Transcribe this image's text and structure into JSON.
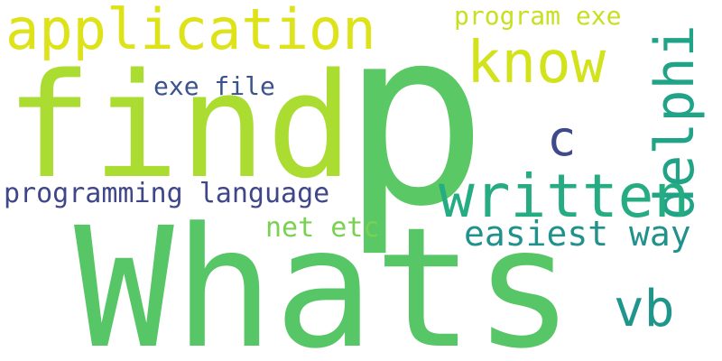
{
  "words": {
    "whats": {
      "text": "Whats",
      "color": "#57c666"
    },
    "p": {
      "text": "p",
      "color": "#5ac864"
    },
    "find": {
      "text": "find",
      "color": "#aadc32"
    },
    "application": {
      "text": "application",
      "color": "#dde318"
    },
    "know": {
      "text": "know",
      "color": "#d2e21b"
    },
    "program_exe": {
      "text": "program exe",
      "color": "#c8e020"
    },
    "delphi": {
      "text": "delphi",
      "color": "#20a386"
    },
    "written": {
      "text": "written",
      "color": "#25ac82"
    },
    "c": {
      "text": "c",
      "color": "#3e4a89"
    },
    "exe_file": {
      "text": "exe file",
      "color": "#3b528b"
    },
    "programming_language": {
      "text": "programming language",
      "color": "#3f4788"
    },
    "easiest_way": {
      "text": "easiest way",
      "color": "#21918c"
    },
    "net_etc": {
      "text": "net etc",
      "color": "#7ad151"
    },
    "vb": {
      "text": "vb",
      "color": "#1f968b"
    }
  }
}
